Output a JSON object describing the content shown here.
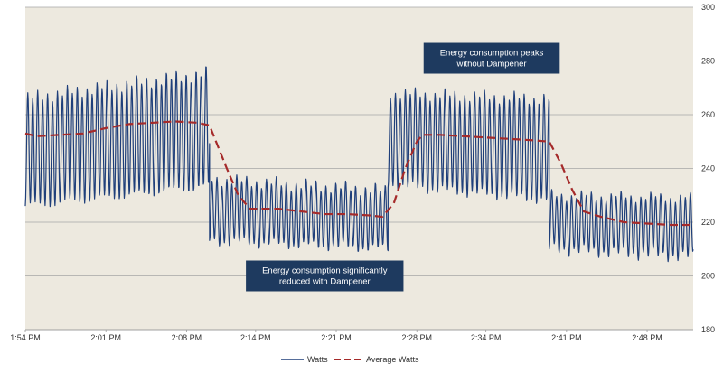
{
  "chart_data": {
    "type": "line",
    "title": "",
    "xlabel": "",
    "ylabel": "",
    "ylim": [
      180,
      300
    ],
    "y_ticks": [
      180,
      200,
      220,
      240,
      260,
      280,
      300
    ],
    "y_axis_side": "right",
    "x_ticks": [
      "1:54 PM",
      "2:01 PM",
      "2:08 PM",
      "2:14 PM",
      "2:21 PM",
      "2:28 PM",
      "2:34 PM",
      "2:41 PM",
      "2:48 PM"
    ],
    "x_range_minutes": [
      0,
      58
    ],
    "x_tick_minutes": [
      0,
      7,
      14,
      20,
      27,
      34,
      40,
      47,
      54
    ],
    "grid": true,
    "plot_background": "#ede9df",
    "legend_position": "bottom",
    "series": [
      {
        "name": "Watts",
        "style": "solid",
        "color": "#1f3f7a",
        "oscillation_period_minutes": 0.43,
        "segments": [
          {
            "x_start": 0,
            "x_end": 16,
            "low_start": 226,
            "low_end": 233,
            "high_start": 266,
            "high_end": 276
          },
          {
            "x_start": 16,
            "x_end": 31.5,
            "low_start": 213,
            "low_end": 210,
            "high_start": 236,
            "high_end": 232
          },
          {
            "x_start": 31.5,
            "x_end": 45.5,
            "low_start": 234,
            "low_end": 228,
            "high_start": 268,
            "high_end": 266
          },
          {
            "x_start": 45.5,
            "x_end": 58,
            "low_start": 210,
            "low_end": 207,
            "high_start": 230,
            "high_end": 229
          }
        ]
      },
      {
        "name": "Average Watts",
        "style": "dashed",
        "color": "#a52a2a",
        "points": [
          [
            0,
            253
          ],
          [
            1,
            252
          ],
          [
            3,
            252.5
          ],
          [
            5,
            253
          ],
          [
            7,
            255
          ],
          [
            9,
            256.5
          ],
          [
            11,
            257
          ],
          [
            13,
            257.5
          ],
          [
            15,
            257
          ],
          [
            16,
            256
          ],
          [
            17.5,
            240
          ],
          [
            18.5,
            230
          ],
          [
            19.5,
            225
          ],
          [
            22,
            225
          ],
          [
            24,
            224
          ],
          [
            26,
            223
          ],
          [
            28,
            223
          ],
          [
            30,
            222.5
          ],
          [
            31,
            222
          ],
          [
            32,
            227
          ],
          [
            33,
            240
          ],
          [
            34,
            250
          ],
          [
            34.5,
            252.5
          ],
          [
            36,
            252.5
          ],
          [
            38,
            252
          ],
          [
            40,
            251.5
          ],
          [
            42,
            251
          ],
          [
            44,
            250.5
          ],
          [
            45.5,
            250
          ],
          [
            46.5,
            242
          ],
          [
            47.5,
            232
          ],
          [
            48.5,
            224
          ],
          [
            50,
            222
          ],
          [
            52,
            220
          ],
          [
            54,
            219.5
          ],
          [
            56,
            219
          ],
          [
            58,
            219
          ]
        ]
      }
    ],
    "annotations": [
      {
        "lines": [
          "Energy consumption peaks",
          "without Dampener"
        ],
        "x_minute": 40.5,
        "y_value": 281
      },
      {
        "lines": [
          "Energy consumption significantly",
          "reduced with Dampener"
        ],
        "x_minute": 26,
        "y_value": 200
      }
    ],
    "annotation_color": "#1e3a5f"
  }
}
